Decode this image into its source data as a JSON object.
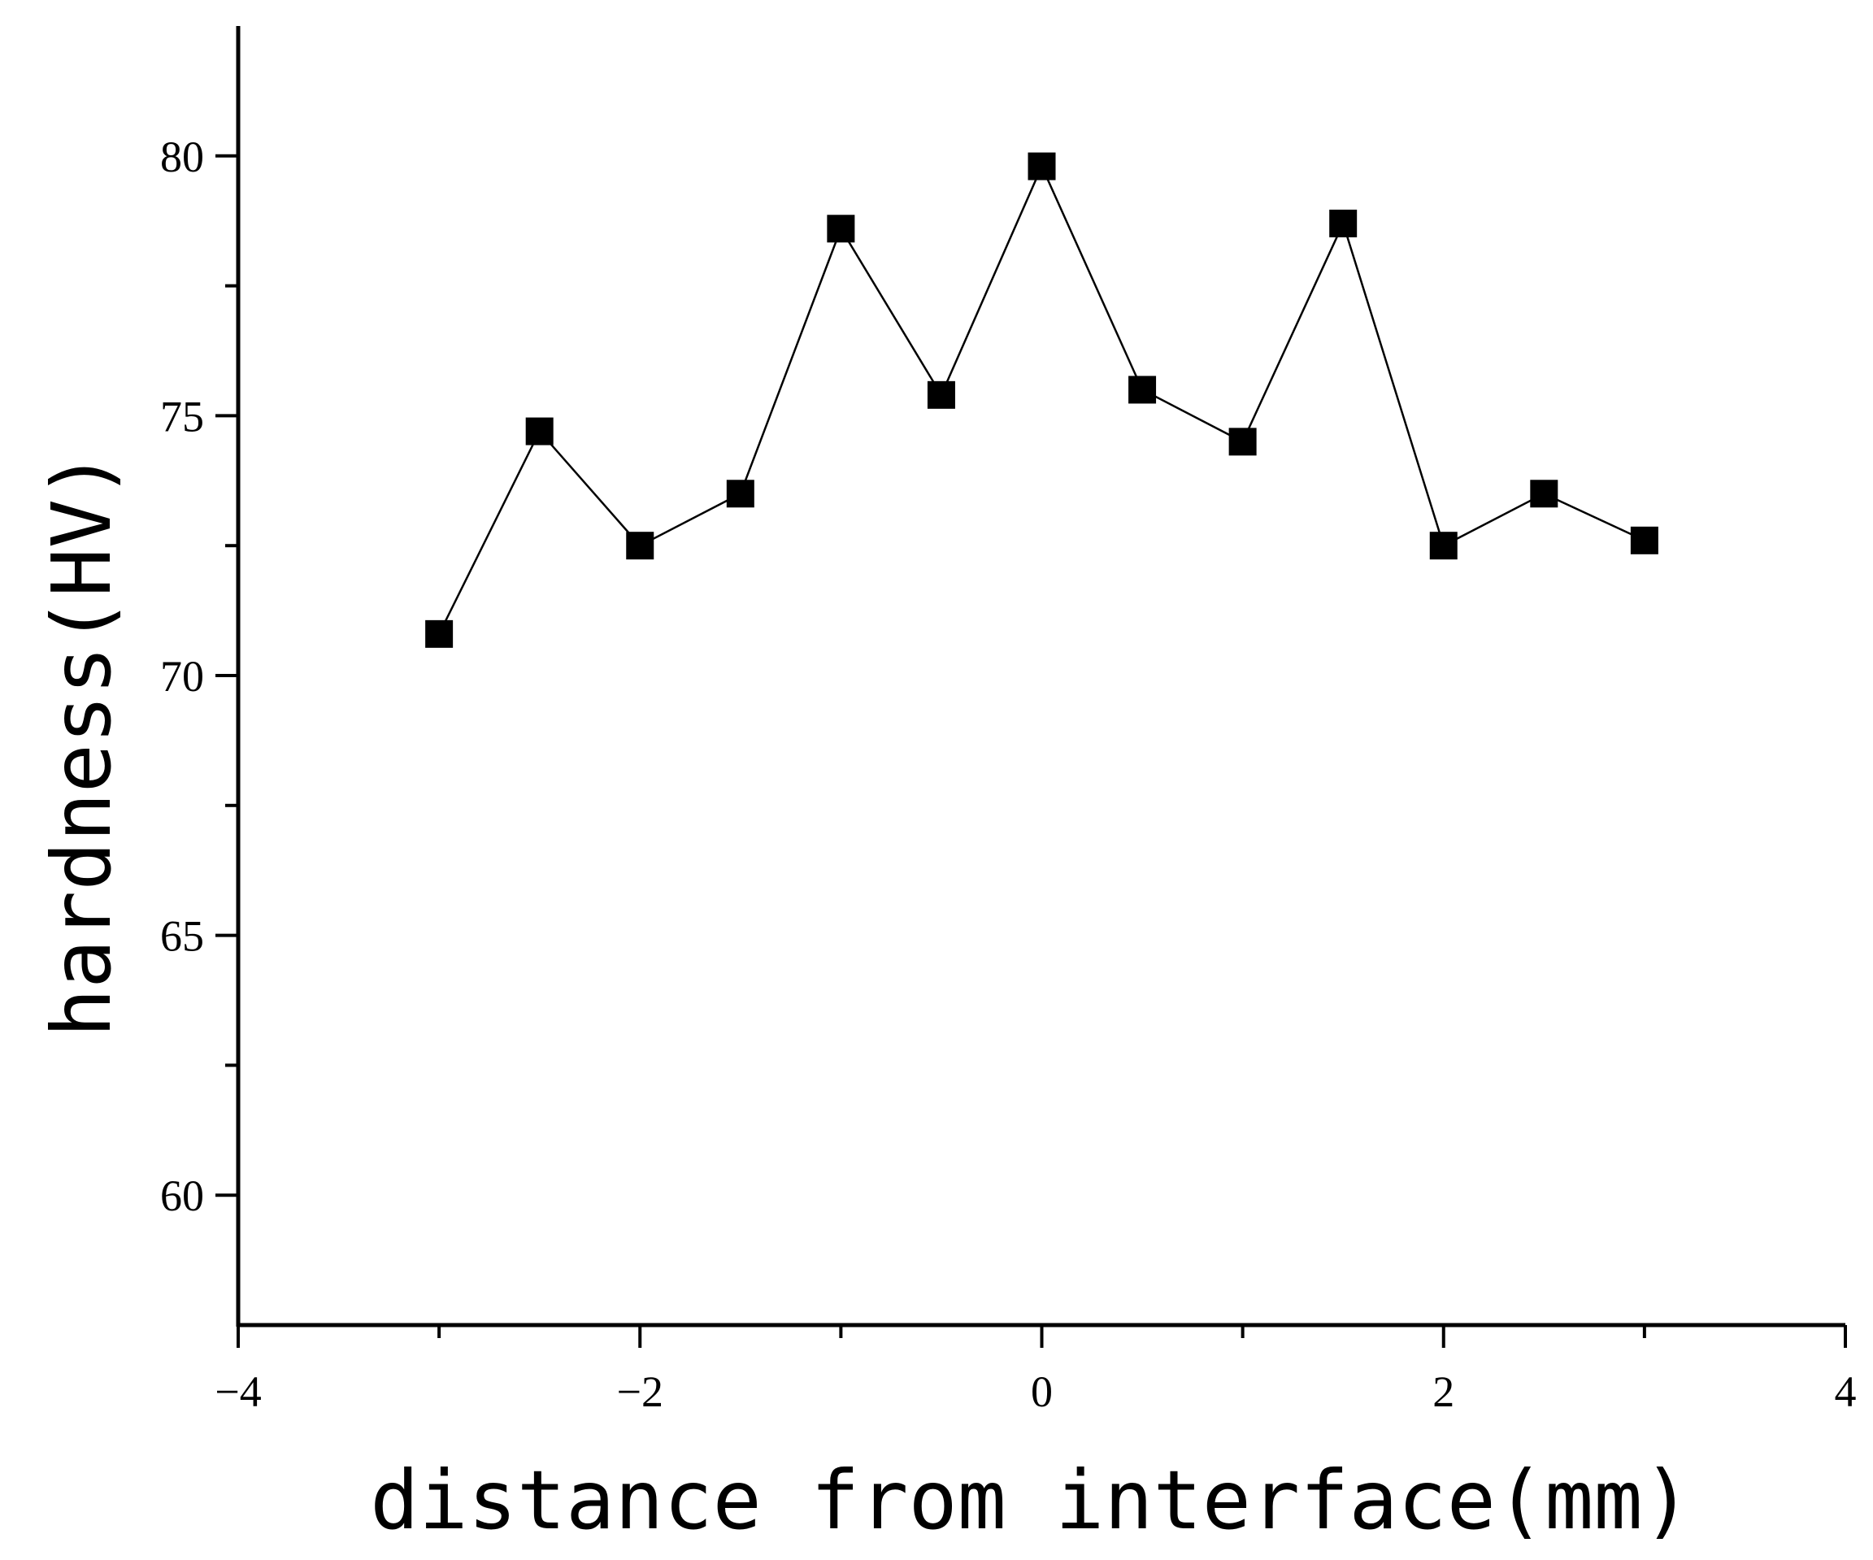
{
  "chart_data": {
    "type": "line",
    "markers": "square",
    "title": "",
    "xlabel": "distance from interface(mm)",
    "ylabel": "hardness(HV)",
    "xlim": [
      -4,
      4
    ],
    "ylim": [
      57.5,
      82.5
    ],
    "xticks": [
      -4,
      -2,
      0,
      2,
      4
    ],
    "xtick_labels": [
      "−4",
      "−2",
      "0",
      "2",
      "4"
    ],
    "xminor": [
      -3,
      -1,
      1,
      3
    ],
    "yticks": [
      60,
      65,
      70,
      75,
      80
    ],
    "ytick_labels": [
      "60",
      "65",
      "70",
      "75",
      "80"
    ],
    "yminor": [
      62.5,
      67.5,
      72.5,
      77.5
    ],
    "grid": false,
    "legend": "none",
    "series": [
      {
        "color": "#000000",
        "x": [
          -3,
          -2.5,
          -2,
          -1.5,
          -1,
          -0.5,
          0,
          0.5,
          1,
          1.5,
          2,
          2.5,
          3
        ],
        "y": [
          70.8,
          74.7,
          72.5,
          73.5,
          78.6,
          75.4,
          79.8,
          75.5,
          74.5,
          78.7,
          72.5,
          73.5,
          72.6
        ]
      }
    ]
  }
}
